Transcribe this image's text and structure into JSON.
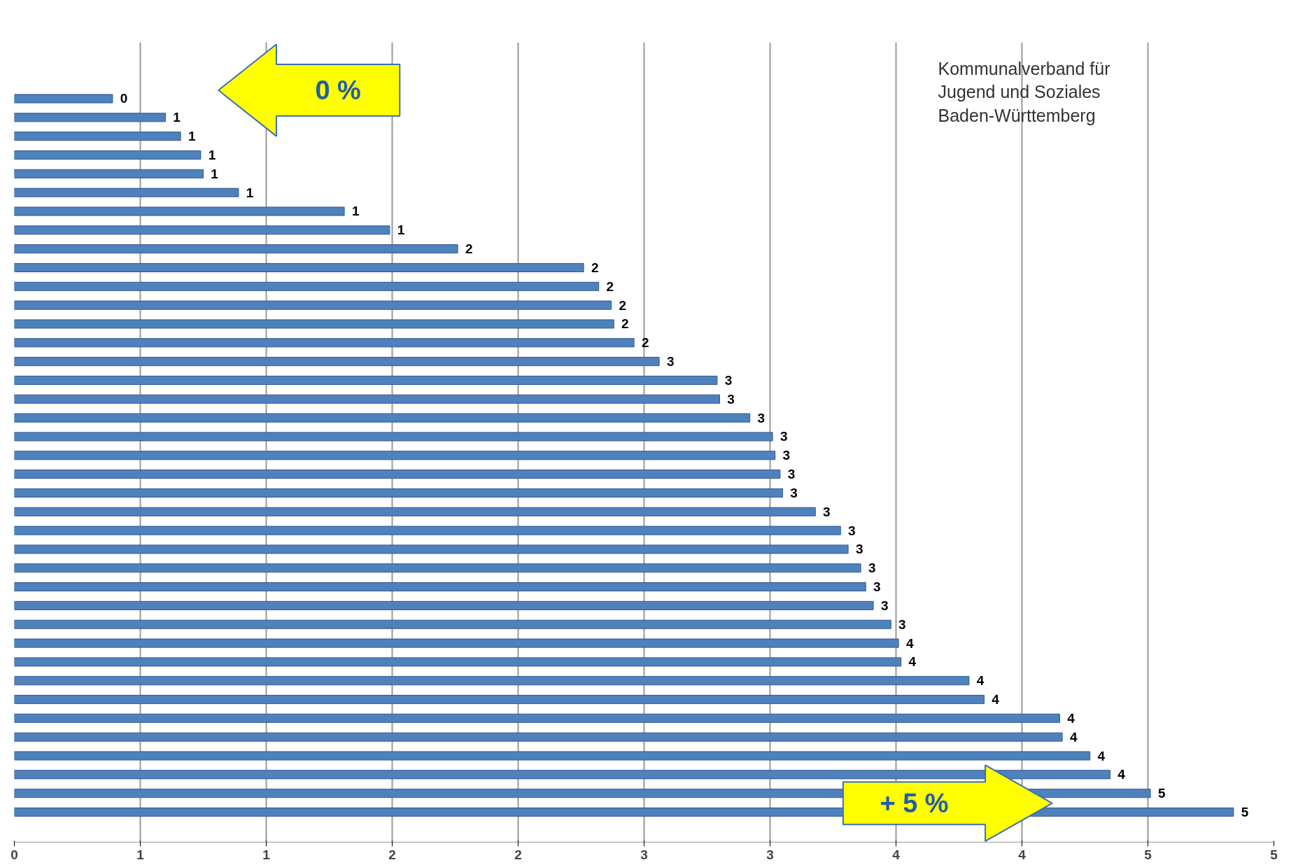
{
  "chart_data": {
    "type": "bar",
    "orientation": "horizontal",
    "color": "#4f81bd",
    "categories": [
      null,
      null,
      null,
      null,
      null,
      null,
      null,
      null,
      null,
      null,
      null,
      null,
      null,
      null,
      null,
      null,
      null,
      null,
      null,
      null,
      null,
      null,
      null,
      null,
      null,
      null,
      null,
      null,
      null,
      null,
      null,
      null,
      null,
      null,
      null,
      null,
      null,
      null,
      null
    ],
    "values": [
      0.39,
      0.6,
      0.66,
      0.74,
      0.75,
      0.89,
      1.31,
      1.49,
      1.76,
      2.26,
      2.32,
      2.37,
      2.38,
      2.46,
      2.56,
      2.79,
      2.8,
      2.92,
      3.01,
      3.02,
      3.04,
      3.05,
      3.18,
      3.28,
      3.31,
      3.36,
      3.38,
      3.41,
      3.48,
      3.51,
      3.52,
      3.79,
      3.85,
      4.15,
      4.16,
      4.27,
      4.35,
      4.51,
      4.84
    ],
    "value_labels": [
      "0",
      "1",
      "1",
      "1",
      "1",
      "1",
      "1",
      "1",
      "2",
      "2",
      "2",
      "2",
      "2",
      "2",
      "3",
      "3",
      "3",
      "3",
      "3",
      "3",
      "3",
      "3",
      "3",
      "3",
      "3",
      "3",
      "3",
      "3",
      "3",
      "4",
      "4",
      "4",
      "4",
      "4",
      "4",
      "4",
      "4",
      "5",
      "5"
    ],
    "xlim": [
      0,
      5
    ],
    "xticks": [
      0,
      {
        "value": 0.5,
        "label": "1"
      },
      1,
      {
        "value": 1.5,
        "label": "2"
      },
      2,
      {
        "value": 2.5,
        "label": "3"
      },
      3,
      {
        "value": 3.5,
        "label": "4"
      },
      4,
      {
        "value": 4.5,
        "label": "5"
      },
      5
    ],
    "grid": "x",
    "annotations": [
      "Kommunalverband für\nJugend und Soziales\nBaden-Württemberg",
      "0 %",
      "+ 5 %"
    ]
  }
}
